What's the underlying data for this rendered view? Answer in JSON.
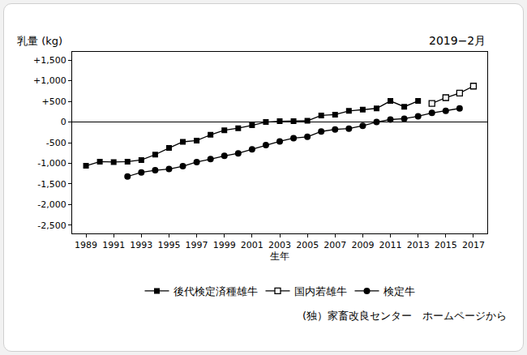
{
  "chart_data": {
    "type": "line",
    "y_label": "乳量 (kg)",
    "x_label": "生年",
    "annotations": [
      "2019−2月",
      "(独）家畜改良センター　ホームページから"
    ],
    "x": [
      1989,
      1990,
      1991,
      1992,
      1993,
      1994,
      1995,
      1996,
      1997,
      1998,
      1999,
      2000,
      2001,
      2002,
      2003,
      2004,
      2005,
      2006,
      2007,
      2008,
      2009,
      2010,
      2011,
      2012,
      2013,
      2014,
      2015,
      2016,
      2017
    ],
    "series": [
      {
        "name": "後代検定済種雄牛",
        "color": "#000000",
        "marker": "square",
        "line_style": "solid",
        "values": [
          -1060,
          -960,
          -970,
          -960,
          -920,
          -790,
          -630,
          -480,
          -450,
          -310,
          -200,
          -150,
          -80,
          0,
          20,
          20,
          30,
          160,
          180,
          270,
          300,
          330,
          510,
          370,
          510,
          null,
          null,
          null,
          null
        ]
      },
      {
        "name": "国内若雄牛",
        "color": "#000000",
        "marker": "square-open",
        "line_style": "solid",
        "values": [
          null,
          null,
          null,
          null,
          null,
          null,
          null,
          null,
          null,
          null,
          null,
          null,
          null,
          null,
          null,
          null,
          null,
          null,
          null,
          null,
          null,
          null,
          null,
          null,
          null,
          450,
          590,
          700,
          870
        ]
      },
      {
        "name": "検定牛",
        "color": "#000000",
        "marker": "circle",
        "line_style": "solid",
        "values": [
          null,
          null,
          null,
          -1320,
          -1220,
          -1170,
          -1140,
          -1070,
          -970,
          -900,
          -820,
          -760,
          -660,
          -560,
          -470,
          -390,
          -360,
          -230,
          -180,
          -160,
          -90,
          0,
          60,
          80,
          140,
          220,
          270,
          330,
          null
        ]
      }
    ],
    "xlim": [
      1988,
      2018
    ],
    "xticks": [
      1989,
      1991,
      1993,
      1995,
      1997,
      1999,
      2001,
      2003,
      2005,
      2007,
      2009,
      2011,
      2013,
      2015,
      2017
    ],
    "ylim": [
      -2700,
      1700
    ],
    "yticks": [
      {
        "value": 1500,
        "label": "+1,500"
      },
      {
        "value": 1000,
        "label": "+1,000"
      },
      {
        "value": 500,
        "label": "+500"
      },
      0,
      -500,
      {
        "value": -1000,
        "label": "-1,000"
      },
      {
        "value": -1500,
        "label": "-1,500"
      },
      {
        "value": -2000,
        "label": "-2,000"
      },
      {
        "value": -2500,
        "label": "-2,500"
      }
    ],
    "grid": false,
    "legend": "bottom"
  }
}
